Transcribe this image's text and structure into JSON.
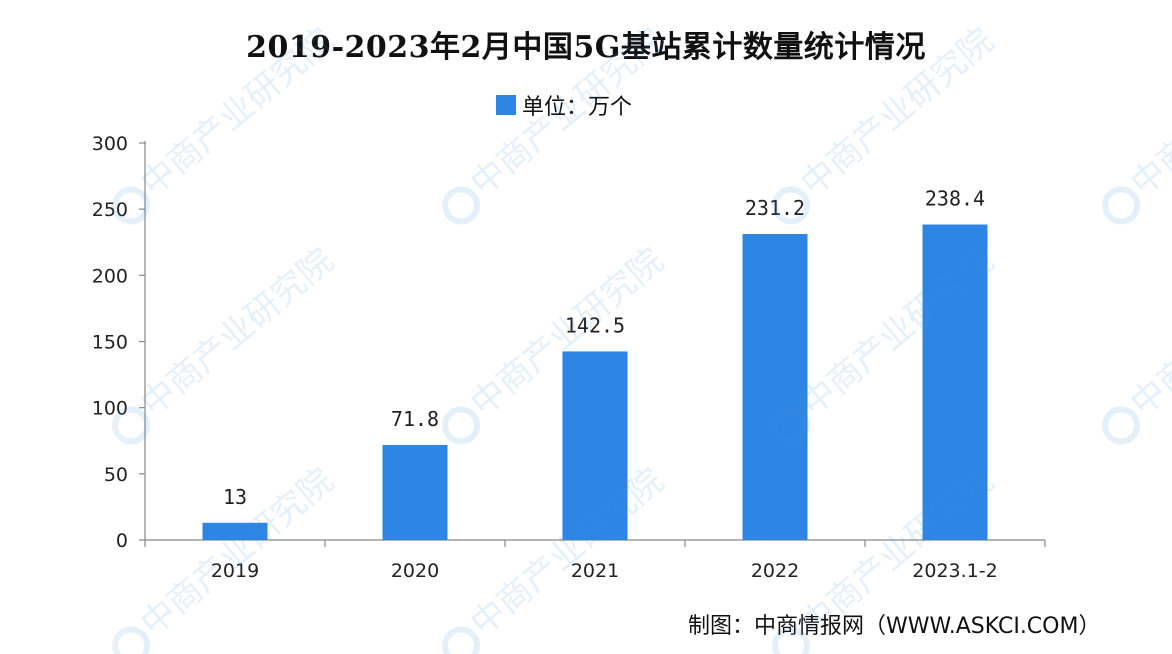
{
  "chart_data": {
    "type": "bar",
    "title": "2019-2023年2月中国5G基站累计数量统计情况",
    "legend": "单位：万个",
    "legend_position": "top-center",
    "categories": [
      "2019",
      "2020",
      "2021",
      "2022",
      "2023.1-2"
    ],
    "series": [
      {
        "name": "单位：万个",
        "values": [
          13,
          71.8,
          142.5,
          231.2,
          238.4
        ],
        "labels": [
          "13",
          "71.8",
          "142.5",
          "231.2",
          "238.4"
        ]
      }
    ],
    "ylim": [
      0,
      300
    ],
    "yticks": [
      "0",
      "50",
      "100",
      "150",
      "200",
      "250",
      "300"
    ],
    "grid": false,
    "bar_color": "#2e86e4"
  },
  "credit": "制图：中商情报网（WWW.ASKCI.COM）",
  "watermark": "中商产业研究院"
}
